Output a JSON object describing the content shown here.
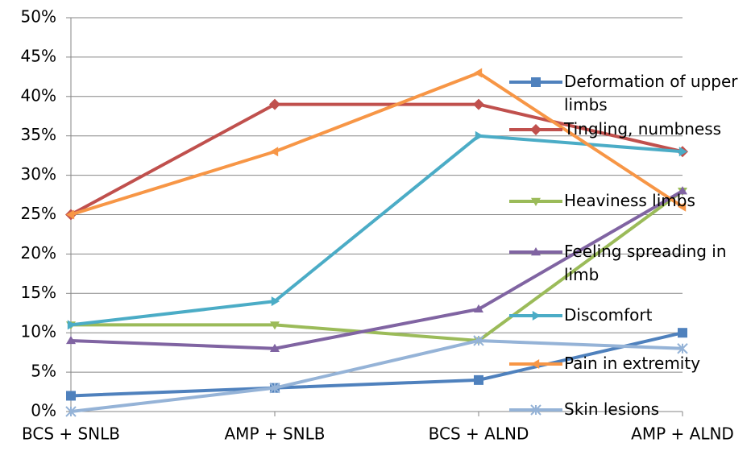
{
  "chart_data": {
    "type": "line",
    "categories": [
      "BCS + SNLB",
      "AMP + SNLB",
      "BCS + ALND",
      "AMP + ALND"
    ],
    "series": [
      {
        "name": "Deformation of upper limbs",
        "color": "#4f81bd",
        "marker": "square",
        "values": [
          2,
          3,
          4,
          10
        ]
      },
      {
        "name": "Tingling, numbness",
        "color": "#c0504d",
        "marker": "diamond",
        "values": [
          25,
          39,
          39,
          33
        ]
      },
      {
        "name": "Heaviness limbs",
        "color": "#9bbb59",
        "marker": "triangle-down",
        "values": [
          11,
          11,
          9,
          28
        ]
      },
      {
        "name": "Feeling spreading in limb",
        "color": "#8064a2",
        "marker": "triangle-up",
        "values": [
          9,
          8,
          13,
          28
        ]
      },
      {
        "name": "Discomfort",
        "color": "#4bacc6",
        "marker": "triangle-right",
        "values": [
          11,
          14,
          35,
          33
        ]
      },
      {
        "name": "Pain in extremity",
        "color": "#f79646",
        "marker": "triangle-left",
        "values": [
          25,
          33,
          43,
          26
        ]
      },
      {
        "name": "Skin lesions",
        "color": "#95b3d7",
        "marker": "cross",
        "values": [
          0,
          3,
          9,
          8
        ]
      }
    ],
    "ylim": [
      0,
      50
    ],
    "yticks": [
      {
        "value": 0,
        "label": "0%"
      },
      {
        "value": 5,
        "label": "5%"
      },
      {
        "value": 10,
        "label": "10%"
      },
      {
        "value": 15,
        "label": "15%"
      },
      {
        "value": 20,
        "label": "20%"
      },
      {
        "value": 25,
        "label": "25%"
      },
      {
        "value": 30,
        "label": "30%"
      },
      {
        "value": 35,
        "label": "35%"
      },
      {
        "value": 40,
        "label": "40%"
      },
      {
        "value": 45,
        "label": "45%"
      },
      {
        "value": 50,
        "label": "50%"
      }
    ],
    "grid": true,
    "legend": "right"
  }
}
